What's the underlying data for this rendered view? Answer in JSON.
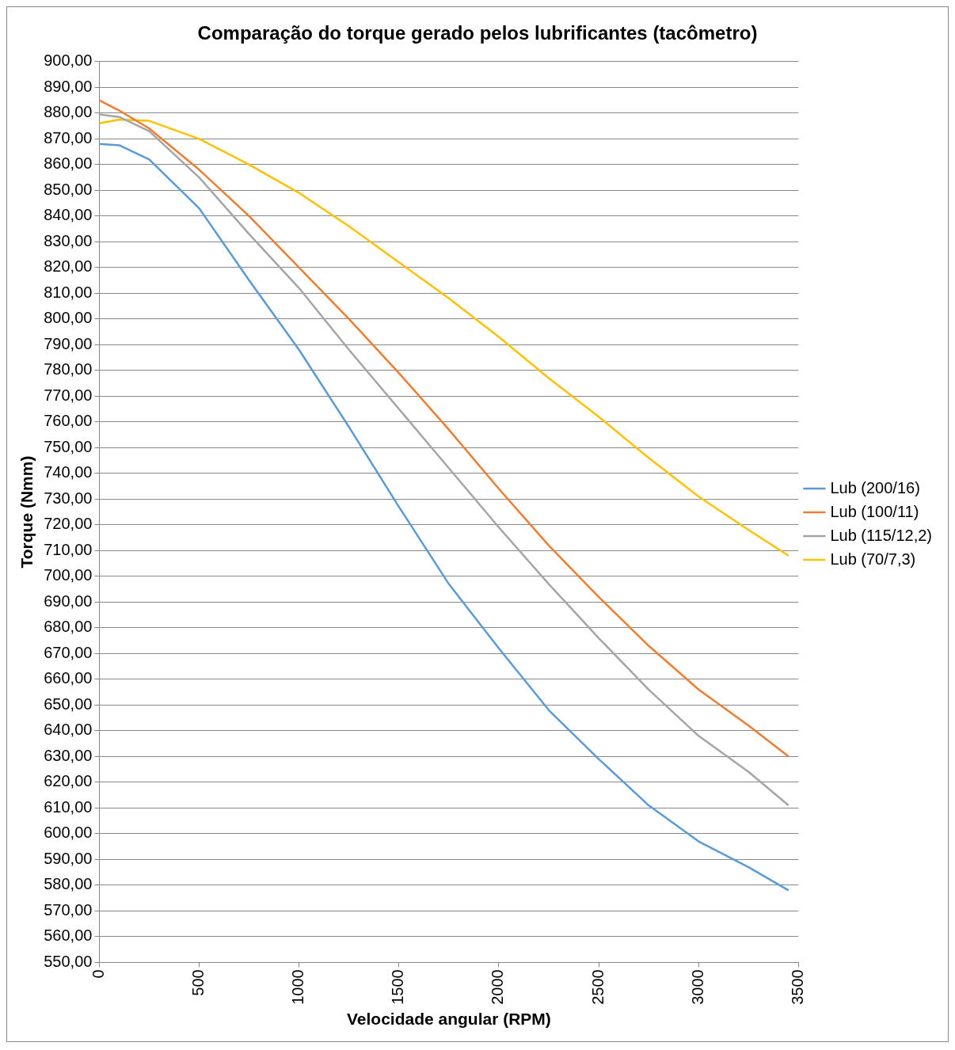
{
  "chart_data": {
    "type": "line",
    "title": "Comparação do torque gerado pelos lubrificantes (tacômetro)",
    "xlabel": "Velocidade angular (RPM)",
    "ylabel": "Torque (Nmm)",
    "x": [
      0,
      100,
      250,
      500,
      750,
      1000,
      1250,
      1500,
      1750,
      2000,
      2250,
      2500,
      2750,
      3000,
      3250,
      3450
    ],
    "series": [
      {
        "name": "Lub (200/16)",
        "color": "#5b9bd5",
        "values": [
          868,
          867.5,
          862,
          843,
          815,
          788,
          758,
          727,
          697,
          672,
          648,
          629,
          611,
          597,
          587,
          578
        ]
      },
      {
        "name": "Lub (100/11)",
        "color": "#ed7d31",
        "values": [
          885,
          881,
          874,
          858,
          840,
          820,
          800,
          779,
          757,
          734,
          712,
          692,
          673,
          656,
          642,
          630
        ]
      },
      {
        "name": "Lub (115/12,2)",
        "color": "#a5a5a5",
        "values": [
          879.5,
          878.5,
          873,
          855,
          833,
          812,
          788,
          765,
          742,
          719,
          697,
          676,
          656,
          638,
          624,
          611
        ]
      },
      {
        "name": "Lub (70/7,3)",
        "color": "#ffc000",
        "values": [
          876,
          877.5,
          877,
          870,
          860,
          849,
          836,
          822,
          808,
          793,
          777,
          762,
          746,
          731,
          718,
          708
        ]
      }
    ],
    "xlim": [
      0,
      3500
    ],
    "xticks": [
      0,
      500,
      1000,
      1500,
      2000,
      2500,
      3000,
      3500
    ],
    "ylim": [
      550,
      900
    ],
    "yticks": [
      {
        "value": 550,
        "label": "550,00"
      },
      {
        "value": 560,
        "label": "560,00"
      },
      {
        "value": 570,
        "label": "570,00"
      },
      {
        "value": 580,
        "label": "580,00"
      },
      {
        "value": 590,
        "label": "590,00"
      },
      {
        "value": 600,
        "label": "600,00"
      },
      {
        "value": 610,
        "label": "610,00"
      },
      {
        "value": 620,
        "label": "620,00"
      },
      {
        "value": 630,
        "label": "630,00"
      },
      {
        "value": 640,
        "label": "640,00"
      },
      {
        "value": 650,
        "label": "650,00"
      },
      {
        "value": 660,
        "label": "660,00"
      },
      {
        "value": 670,
        "label": "670,00"
      },
      {
        "value": 680,
        "label": "680,00"
      },
      {
        "value": 690,
        "label": "690,00"
      },
      {
        "value": 700,
        "label": "700,00"
      },
      {
        "value": 710,
        "label": "710,00"
      },
      {
        "value": 720,
        "label": "720,00"
      },
      {
        "value": 730,
        "label": "730,00"
      },
      {
        "value": 740,
        "label": "740,00"
      },
      {
        "value": 750,
        "label": "750,00"
      },
      {
        "value": 760,
        "label": "760,00"
      },
      {
        "value": 770,
        "label": "770,00"
      },
      {
        "value": 780,
        "label": "780,00"
      },
      {
        "value": 790,
        "label": "790,00"
      },
      {
        "value": 800,
        "label": "800,00"
      },
      {
        "value": 810,
        "label": "810,00"
      },
      {
        "value": 820,
        "label": "820,00"
      },
      {
        "value": 830,
        "label": "830,00"
      },
      {
        "value": 840,
        "label": "840,00"
      },
      {
        "value": 850,
        "label": "850,00"
      },
      {
        "value": 860,
        "label": "860,00"
      },
      {
        "value": 870,
        "label": "870,00"
      },
      {
        "value": 880,
        "label": "880,00"
      },
      {
        "value": 890,
        "label": "890,00"
      },
      {
        "value": 900,
        "label": "900,00"
      }
    ],
    "grid": "y",
    "legend": "right",
    "line_style": "solid"
  }
}
